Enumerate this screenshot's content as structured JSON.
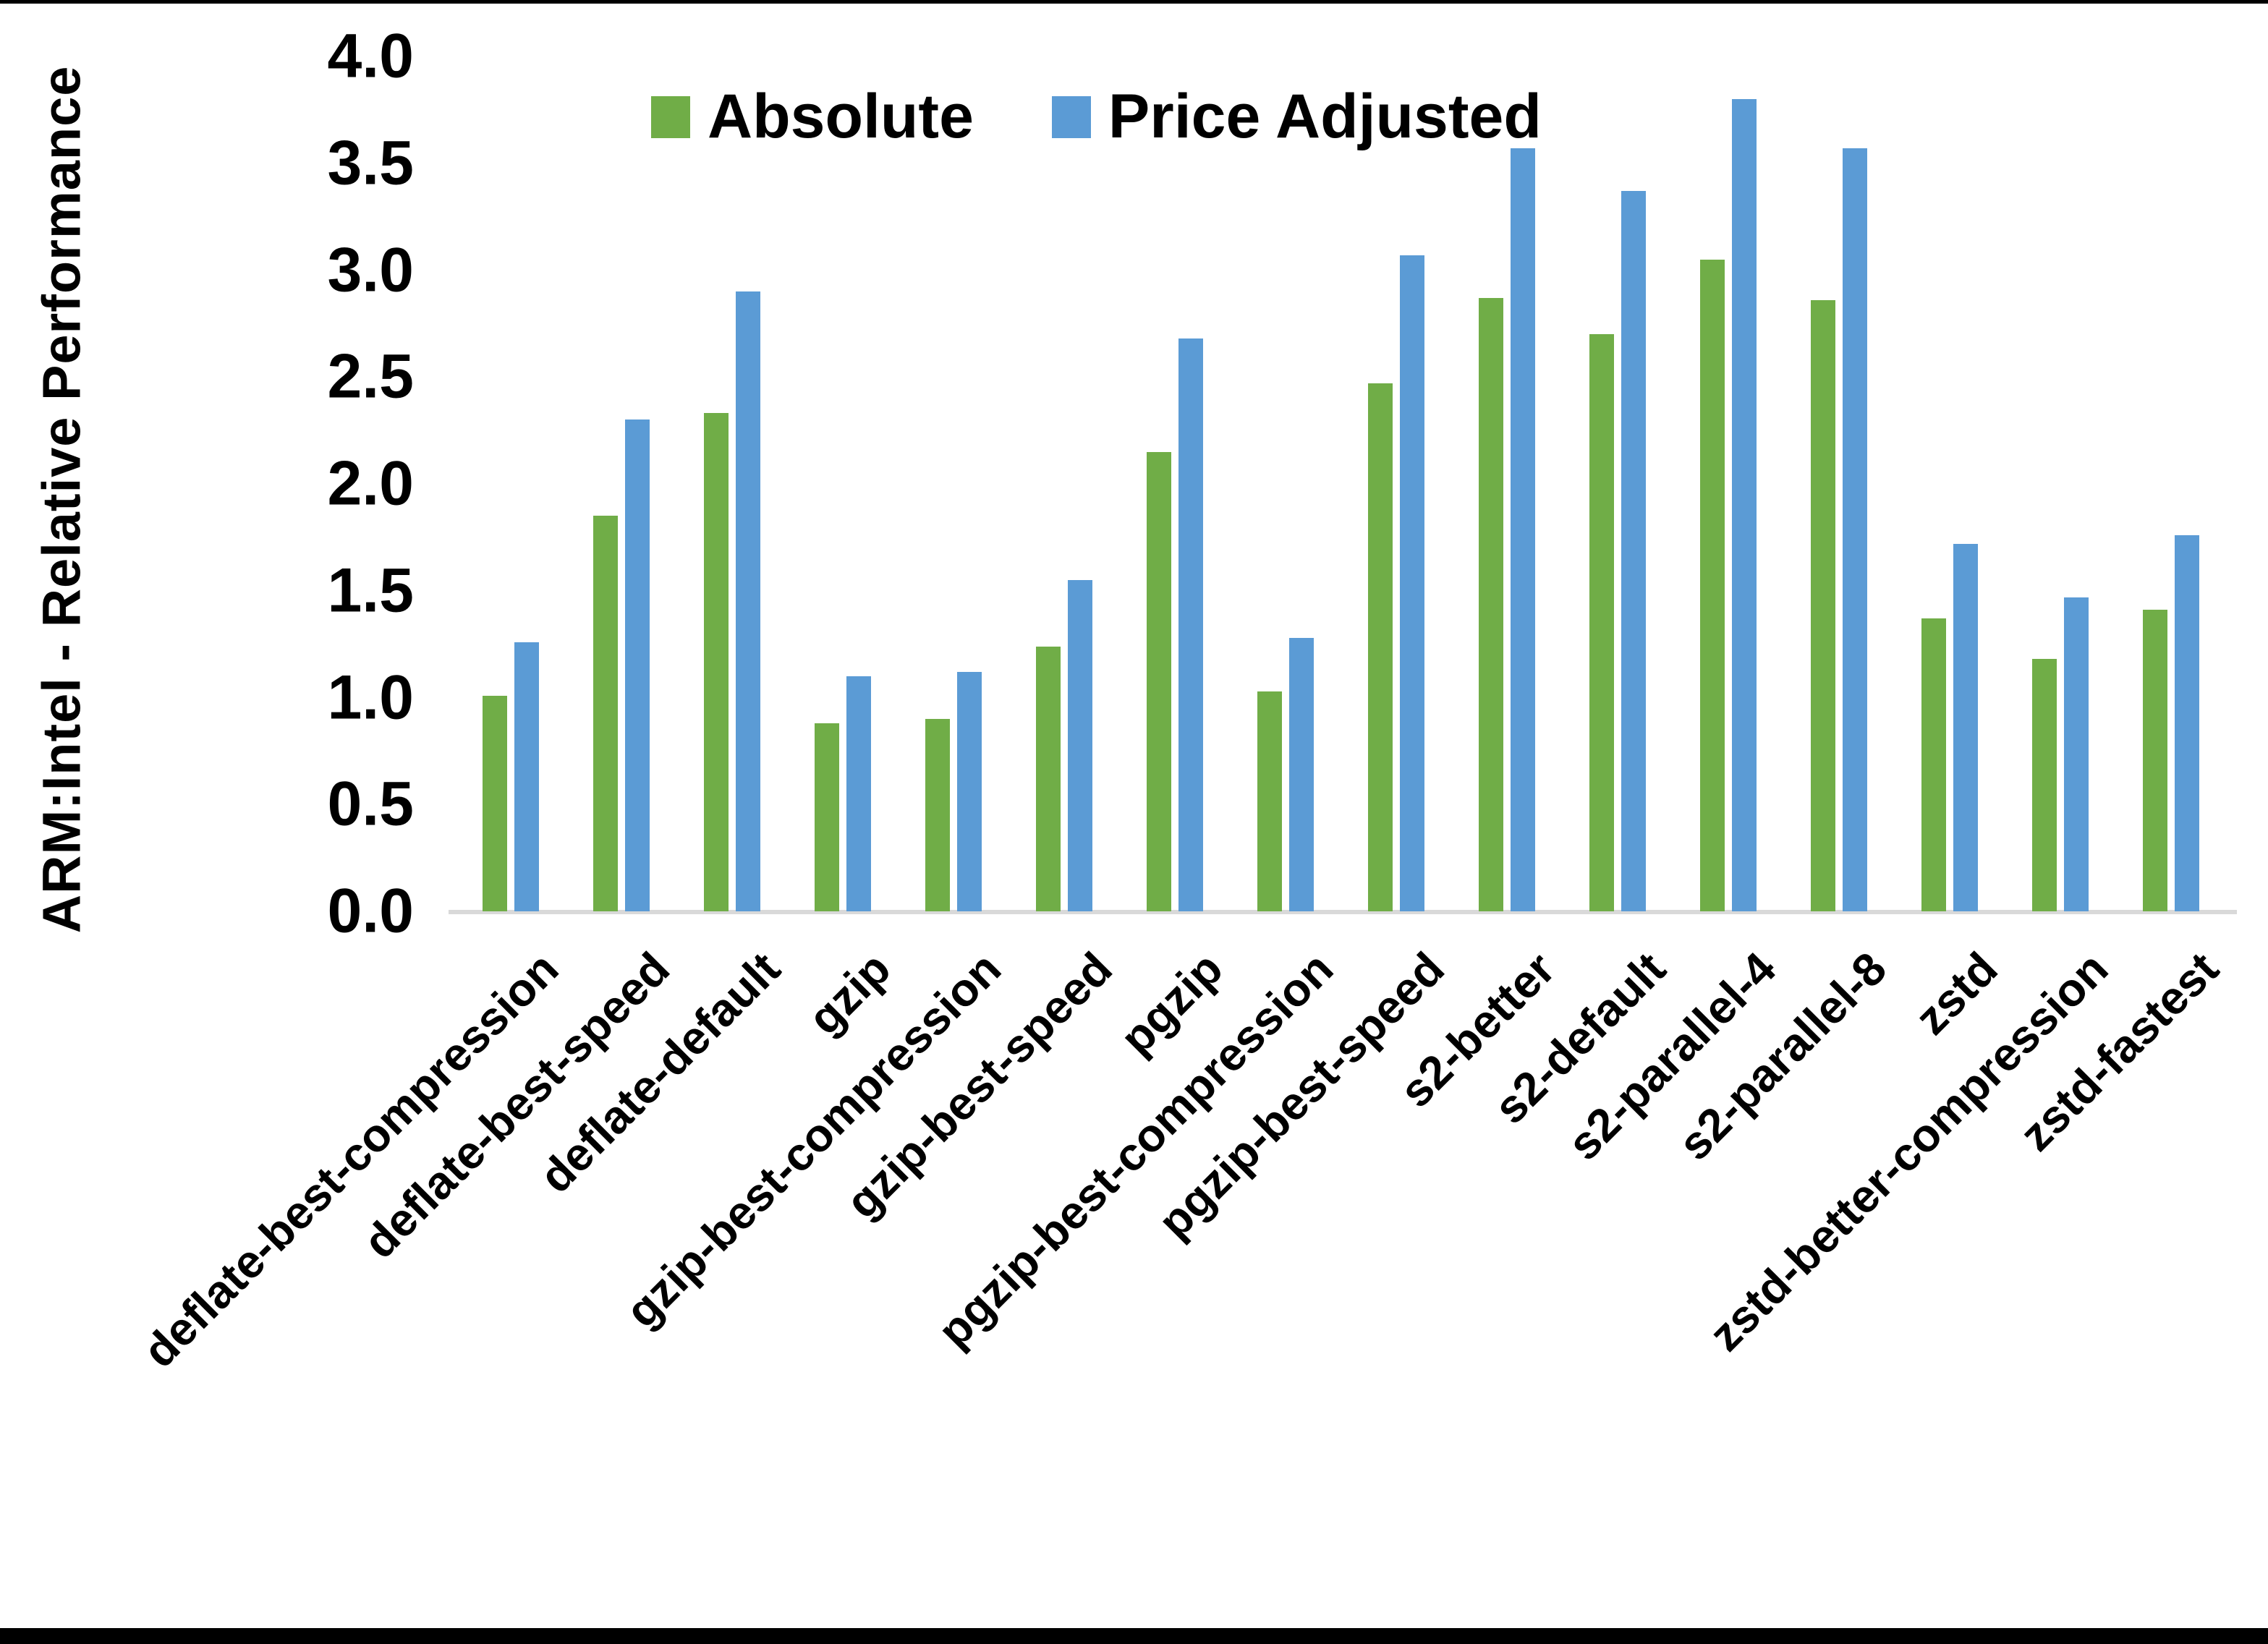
{
  "page": {
    "background": "#FFFFFF",
    "border_color": "#000000"
  },
  "legend": {
    "absolute_label": "Absolute",
    "price_adjusted_label": "Price Adjusted"
  },
  "chart_data": {
    "type": "bar",
    "title": "",
    "xlabel": "",
    "ylabel": "ARM:Intel - Relative Performance",
    "ylim": [
      0.0,
      4.0
    ],
    "ytick_step": 0.5,
    "ytick_labels": [
      "0.0",
      "0.5",
      "1.0",
      "1.5",
      "2.0",
      "2.5",
      "3.0",
      "3.5",
      "4.0"
    ],
    "grid": false,
    "legend_position": "top-center",
    "axis_line_color": "#D9D9D9",
    "categories": [
      "deflate-best-compression",
      "deflate-best-speed",
      "deflate-default",
      "gzip",
      "gzip-best-compression",
      "gzip-best-speed",
      "pgzip",
      "pgzip-best-compression",
      "pgzip-best-speed",
      "s2-better",
      "s2-default",
      "s2-parallel-4",
      "s2-parallel-8",
      "zstd",
      "zstd-better-compression",
      "zstd-fastest"
    ],
    "series": [
      {
        "name": "Absolute",
        "color": "#70AD47",
        "values": [
          1.01,
          1.85,
          2.33,
          0.88,
          0.9,
          1.24,
          2.15,
          1.03,
          2.47,
          2.87,
          2.7,
          3.05,
          2.86,
          1.37,
          1.18,
          1.41
        ]
      },
      {
        "name": "Price Adjusted",
        "color": "#5B9BD5",
        "values": [
          1.26,
          2.3,
          2.9,
          1.1,
          1.12,
          1.55,
          2.68,
          1.28,
          3.07,
          3.57,
          3.37,
          3.8,
          3.57,
          1.72,
          1.47,
          1.76
        ]
      }
    ]
  }
}
